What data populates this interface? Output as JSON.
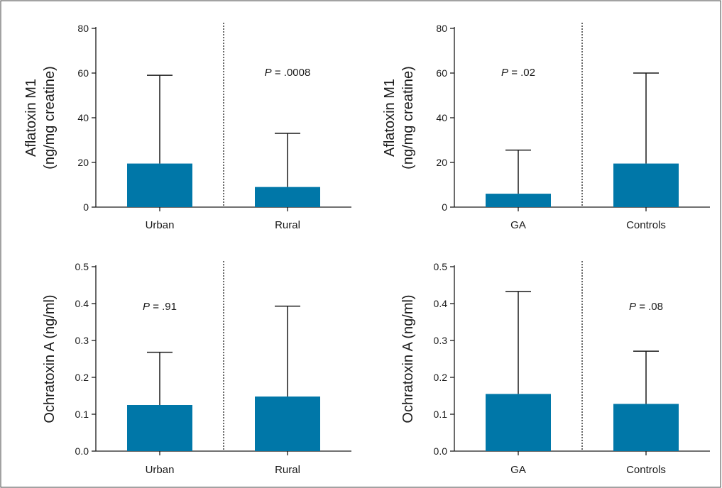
{
  "colors": {
    "bar": "#0077a8",
    "axis": "#1a1a1a",
    "frame": "#444444"
  },
  "chart_data": [
    {
      "type": "bar",
      "ylabel": [
        "Aflatoxin M1",
        "(ng/mg creatine)"
      ],
      "categories": [
        "Urban",
        "Rural"
      ],
      "values": [
        19.5,
        9.0
      ],
      "error_upper": [
        59,
        33
      ],
      "ylim": [
        0,
        80
      ],
      "yticks": [
        "0",
        "20",
        "40",
        "60",
        "80"
      ],
      "annotation": {
        "prefix": "P",
        "value": " = .0008",
        "x_position": "right-group"
      },
      "divider": true
    },
    {
      "type": "bar",
      "ylabel": [
        "Aflatoxin M1",
        "(ng/mg creatine)"
      ],
      "categories": [
        "GA",
        "Controls"
      ],
      "values": [
        6.0,
        19.5
      ],
      "error_upper": [
        25.5,
        60
      ],
      "ylim": [
        0,
        80
      ],
      "yticks": [
        "0",
        "20",
        "40",
        "60",
        "80"
      ],
      "annotation": {
        "prefix": "P",
        "value": " = .02",
        "x_position": "left-group"
      },
      "divider": true
    },
    {
      "type": "bar",
      "ylabel": [
        "Ochratoxin A (ng/ml)"
      ],
      "categories": [
        "Urban",
        "Rural"
      ],
      "values": [
        0.125,
        0.148
      ],
      "error_upper": [
        0.268,
        0.393
      ],
      "ylim": [
        0,
        0.5
      ],
      "yticks": [
        "0.0",
        "0.1",
        "0.2",
        "0.3",
        "0.4",
        "0.5"
      ],
      "annotation": {
        "prefix": "P",
        "value": " = .91",
        "x_position": "left-group"
      },
      "divider": true
    },
    {
      "type": "bar",
      "ylabel": [
        "Ochratoxin A (ng/ml)"
      ],
      "categories": [
        "GA",
        "Controls"
      ],
      "values": [
        0.155,
        0.128
      ],
      "error_upper": [
        0.433,
        0.271
      ],
      "ylim": [
        0,
        0.5
      ],
      "yticks": [
        "0.0",
        "0.1",
        "0.2",
        "0.3",
        "0.4",
        "0.5"
      ],
      "annotation": {
        "prefix": "P",
        "value": " = .08",
        "x_position": "right-group"
      },
      "divider": true
    }
  ]
}
